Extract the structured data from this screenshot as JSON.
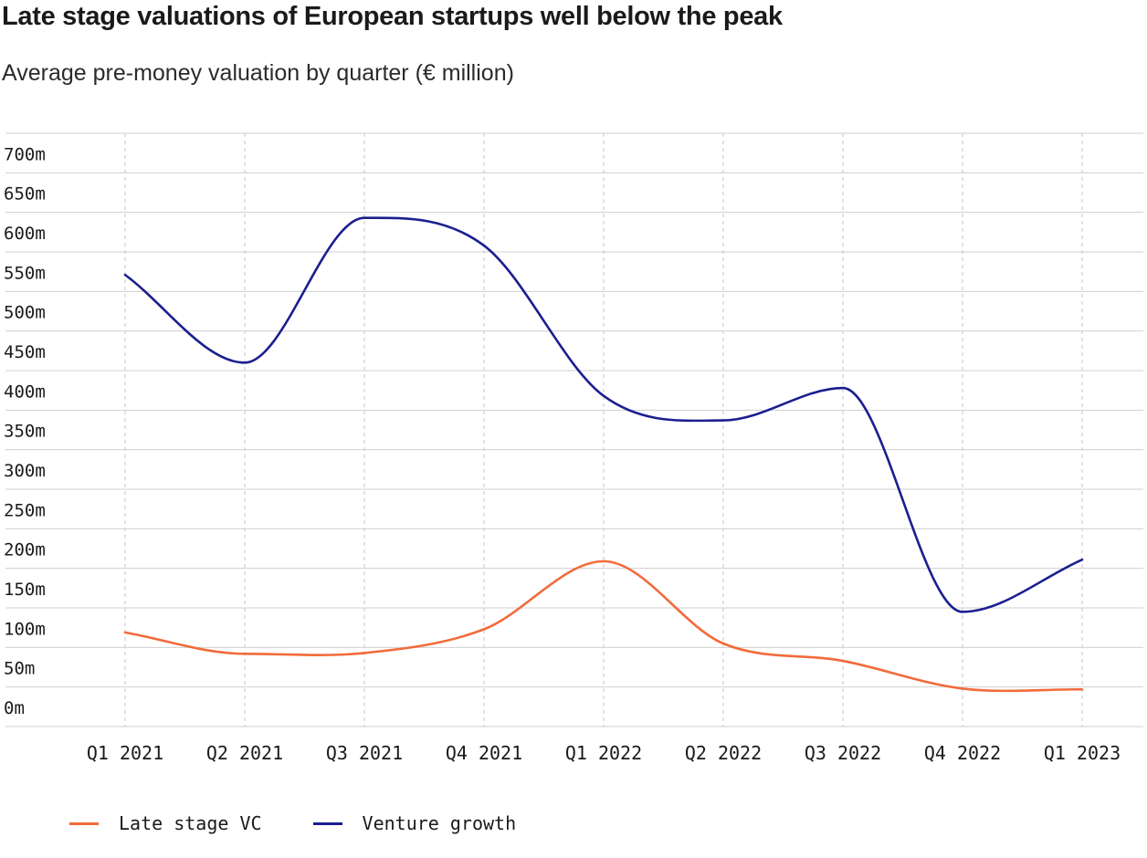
{
  "chart_data": {
    "type": "line",
    "title": "Late stage valuations of European startups well below the peak",
    "subtitle": "Average pre-money valuation by quarter (€ million)",
    "categories": [
      "Q1 2021",
      "Q2 2021",
      "Q3 2021",
      "Q4 2021",
      "Q1 2022",
      "Q2 2022",
      "Q3 2022",
      "Q4 2022",
      "Q1 2023"
    ],
    "y_ticks": [
      "0m",
      "50m",
      "100m",
      "150m",
      "200m",
      "250m",
      "300m",
      "350m",
      "400m",
      "450m",
      "500m",
      "550m",
      "600m",
      "650m",
      "700m"
    ],
    "ylim": [
      0,
      750
    ],
    "grid": true,
    "legend_position": "bottom-left",
    "series": [
      {
        "name": "Late stage VC",
        "color": "#f26b3a",
        "values": [
          119,
          92,
          93,
          123,
          209,
          105,
          83,
          48,
          47
        ]
      },
      {
        "name": "Venture growth",
        "color": "#1b1f8f",
        "values": [
          571,
          460,
          643,
          608,
          418,
          387,
          428,
          145,
          211
        ]
      }
    ]
  }
}
